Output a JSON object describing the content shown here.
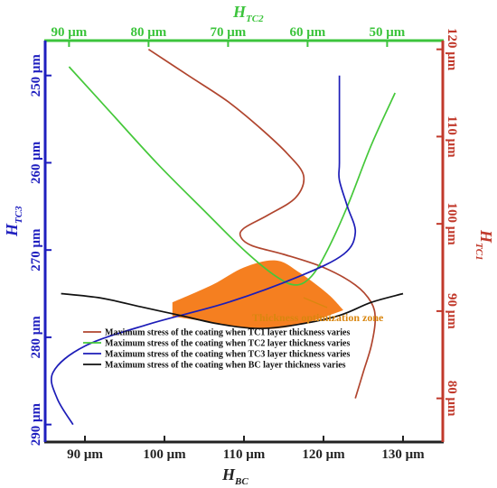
{
  "chart_data": {
    "type": "line",
    "axes": {
      "bottom": {
        "label": "H",
        "sub": "BC",
        "color": "#222222",
        "lim": [
          85,
          135
        ],
        "ticks": [
          90,
          100,
          110,
          120,
          130
        ],
        "tick_labels": [
          "90 μm",
          "100 μm",
          "110 μm",
          "120 μm",
          "130 μm"
        ]
      },
      "top": {
        "label": "H",
        "sub": "TC2",
        "color": "#3cc43c",
        "lim": [
          93,
          43
        ],
        "ticks": [
          90,
          80,
          70,
          60,
          50
        ],
        "tick_labels": [
          "90 μm",
          "80 μm",
          "70 μm",
          "60 μm",
          "50 μm"
        ]
      },
      "left": {
        "label": "H",
        "sub": "TC3",
        "color": "#1f1fbf",
        "lim": [
          246,
          292
        ],
        "ticks": [
          250,
          260,
          270,
          280,
          290
        ],
        "tick_labels": [
          "250 μm",
          "260 μm",
          "270 μm",
          "280 μm",
          "290 μm"
        ]
      },
      "right": {
        "label": "H",
        "sub": "TC1",
        "color": "#c1392b",
        "lim": [
          75,
          121
        ],
        "ticks": [
          80,
          90,
          100,
          110,
          120
        ],
        "tick_labels": [
          "80 μm",
          "90 μm",
          "100 μm",
          "110 μm",
          "120 μm"
        ]
      }
    },
    "series": [
      {
        "name": "Maximum stress of the coating when TC1 layer thickness varies",
        "color": "#b0452e",
        "y_axis": "right",
        "x": [
          98,
          103,
          108,
          112,
          115.5,
          117.5,
          116.5,
          113,
          110,
          109.6,
          111,
          115,
          120,
          124,
          126,
          126.5,
          126,
          125,
          124
        ],
        "y": [
          120,
          117,
          114,
          111,
          108,
          105.5,
          103,
          101,
          99.5,
          98.5,
          97.5,
          96.5,
          95,
          93,
          91,
          89,
          86,
          83,
          80
        ]
      },
      {
        "name": "Maximum stress of the coating when TC2 layer thickness varies",
        "color": "#45c83a",
        "y_axis": "left",
        "x": [
          88,
          93,
          99,
          105,
          110,
          114,
          116.5,
          118.5,
          120.5,
          123,
          126,
          129
        ],
        "y": [
          249,
          254,
          260,
          265.5,
          270,
          273,
          274,
          273,
          270,
          265,
          258,
          252
        ]
      },
      {
        "name": "Maximum stress of the coating when TC3 layer thickness varies",
        "color": "#1d1db8",
        "y_axis": "left",
        "x": [
          122,
          122,
          122,
          122,
          123,
          124,
          122.5,
          117,
          108,
          98,
          90,
          86,
          86.5,
          88.5
        ],
        "y": [
          250,
          255,
          260,
          262,
          265,
          268,
          270.5,
          273,
          276,
          278.5,
          281,
          284,
          287,
          290
        ]
      },
      {
        "name": "Maximum stress of the coating when BC layer thickness varies",
        "color": "#111111",
        "y_axis": "left",
        "x": [
          87,
          92,
          97,
          102,
          107,
          112,
          117,
          122,
          126,
          130
        ],
        "y": [
          275,
          275.5,
          276.5,
          277.5,
          278.5,
          279,
          278.5,
          277.5,
          276,
          275
        ]
      }
    ],
    "zone": {
      "label": "Thickness optimization zone",
      "fill": "#f57f20",
      "label_color": "#d9860f",
      "upper_x": [
        101,
        106,
        110,
        114,
        117,
        120.5,
        122.5
      ],
      "upper_y": [
        276,
        274,
        272,
        271.2,
        272.6,
        275,
        276.9
      ],
      "lower_x": [
        122.5,
        118,
        114,
        110,
        106,
        101
      ],
      "lower_y": [
        276.9,
        278.3,
        279,
        278.9,
        278.3,
        277.6
      ]
    },
    "legend_position": "lower-center"
  }
}
